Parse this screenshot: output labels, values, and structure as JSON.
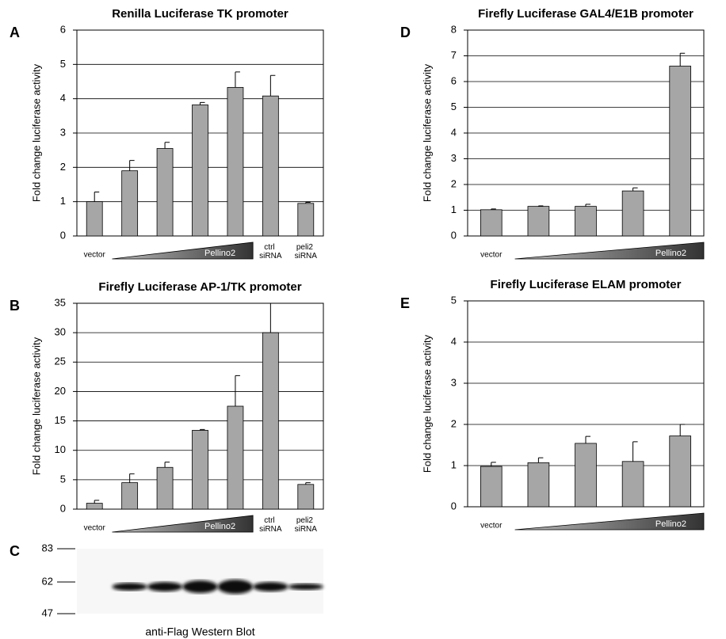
{
  "chart_data": [
    {
      "type": "bar",
      "panel": "A",
      "title": "Renilla Luciferase TK promoter",
      "y_label": "Fold change luciferase activity",
      "categories": [
        "vector",
        null,
        null,
        null,
        null,
        "ctrl siRNA",
        "peli2 siRNA"
      ],
      "annotation": "Pellino2",
      "values": [
        1.0,
        1.9,
        2.55,
        3.82,
        4.33,
        4.08,
        0.95
      ],
      "errors": [
        0.28,
        0.3,
        0.18,
        0.07,
        0.45,
        0.6,
        0.03
      ],
      "color": "#a6a6a6",
      "ylim": [
        0,
        6
      ],
      "yticks": [
        0,
        1,
        2,
        3,
        4,
        5,
        6
      ],
      "grid": true
    },
    {
      "type": "bar",
      "panel": "B",
      "title": "Firefly Luciferase AP-1/TK promoter",
      "y_label": "Fold change luciferase activity",
      "categories": [
        "vector",
        null,
        null,
        null,
        null,
        "ctrl siRNA",
        "peli2 siRNA"
      ],
      "annotation": "Pellino2",
      "values": [
        1.0,
        4.5,
        7.1,
        13.4,
        17.5,
        30,
        4.2
      ],
      "errors": [
        0.5,
        1.5,
        0.9,
        0.15,
        5.2,
        5.5,
        0.3
      ],
      "color": "#a6a6a6",
      "ylim": [
        0,
        35
      ],
      "yticks": [
        0,
        5,
        10,
        15,
        20,
        25,
        30,
        35
      ],
      "grid": true
    },
    {
      "type": "bar",
      "panel": "D",
      "title": "Firefly Luciferase GAL4/E1B promoter",
      "y_label": "Fold change luciferase activity",
      "categories": [
        "vector",
        null,
        null,
        null,
        null
      ],
      "annotation": "Pellino2",
      "values": [
        1.02,
        1.15,
        1.15,
        1.75,
        6.6
      ],
      "errors": [
        0.03,
        0.02,
        0.08,
        0.12,
        0.5
      ],
      "color": "#a6a6a6",
      "ylim": [
        0,
        8
      ],
      "yticks": [
        0,
        1,
        2,
        3,
        4,
        5,
        6,
        7,
        8
      ],
      "grid": true
    },
    {
      "type": "bar",
      "panel": "E",
      "title": "Firefly Luciferase ELAM  promoter",
      "y_label": "Fold change luciferase activity",
      "categories": [
        "vector",
        null,
        null,
        null,
        null
      ],
      "annotation": "Pellino2",
      "values": [
        0.98,
        1.07,
        1.54,
        1.1,
        1.72
      ],
      "errors": [
        0.1,
        0.12,
        0.17,
        0.48,
        0.28
      ],
      "color": "#a6a6a6",
      "ylim": [
        0,
        5
      ],
      "yticks": [
        0,
        1,
        2,
        3,
        4,
        5
      ],
      "grid": true
    }
  ],
  "blot": {
    "panel": "C",
    "markers": [
      83,
      62,
      47
    ],
    "caption": "anti-Flag Western Blot"
  }
}
